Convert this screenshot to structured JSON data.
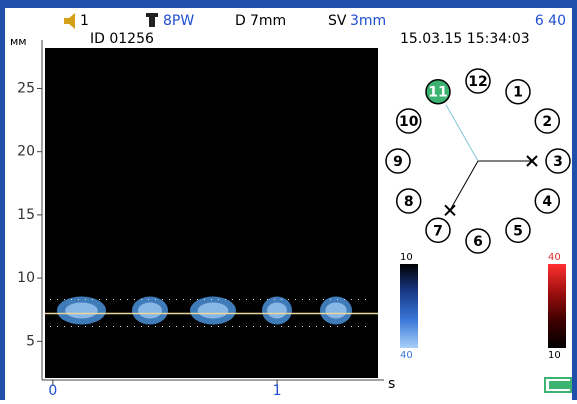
{
  "status": {
    "channel": "1",
    "probe": "8PW",
    "depth_label": "D",
    "depth": "7mm",
    "sv_label": "SV",
    "sv": "3mm",
    "counter": "6 40"
  },
  "patient_id": "ID 01256",
  "datetime": "15.03.15 15:34:03",
  "spectrum": {
    "y_unit": "мм",
    "x_unit": "s",
    "ylim": [
      2.1,
      28.2
    ],
    "yticks": [
      5,
      10,
      15,
      20,
      25
    ],
    "xlim": [
      -0.035,
      1.45
    ],
    "xticks": [
      0,
      1
    ],
    "baseline": 7.2,
    "background": "#000000",
    "signal_color": "#4a90d9"
  },
  "clock": {
    "active_color": "#3cb371",
    "nodes": [
      {
        "label": "1"
      },
      {
        "label": "2"
      },
      {
        "label": "3"
      },
      {
        "label": "4"
      },
      {
        "label": "5"
      },
      {
        "label": "6"
      },
      {
        "label": "7"
      },
      {
        "label": "8"
      },
      {
        "label": "9"
      },
      {
        "label": "10"
      },
      {
        "label": "11",
        "active": true
      },
      {
        "label": "12"
      }
    ]
  },
  "scales": [
    {
      "top": 10,
      "bottom": 40,
      "colors": [
        "#000000",
        "#1a3a8a",
        "#3a78d8",
        "#a8d0f8"
      ]
    },
    {
      "top": 40,
      "bottom": 10,
      "colors": [
        "#ff3030",
        "#a01010",
        "#400000",
        "#000000"
      ]
    }
  ]
}
